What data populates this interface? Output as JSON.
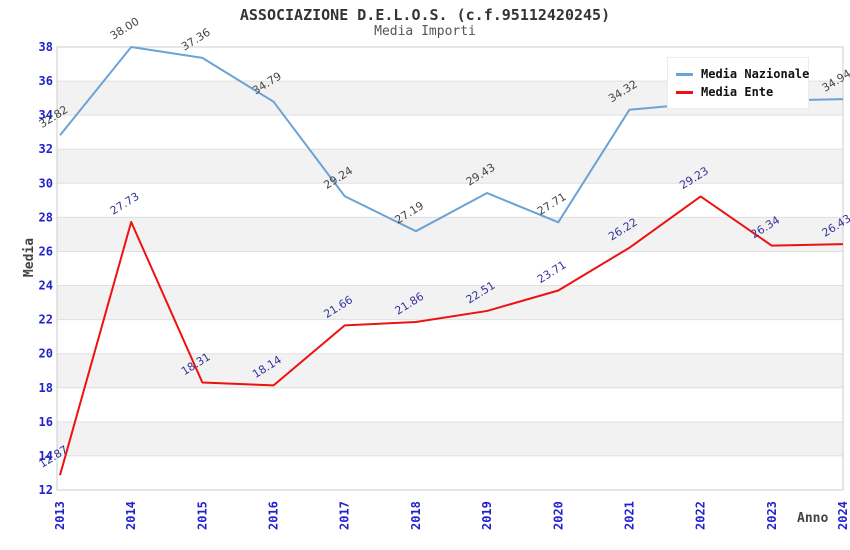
{
  "chart_data": {
    "type": "line",
    "title": "ASSOCIAZIONE D.E.L.O.S. (c.f.95112420245)",
    "subtitle": "Media Importi",
    "x": [
      2013,
      2014,
      2015,
      2016,
      2017,
      2018,
      2019,
      2020,
      2021,
      2022,
      2023,
      2024
    ],
    "xlabel": "Anno",
    "ylabel": "Media",
    "ylim": [
      12,
      38
    ],
    "ytick_step": 2,
    "grid": true,
    "background": "striped-bands",
    "legend_position": "top-right",
    "series": [
      {
        "name": "Media Nazionale",
        "color": "#6ba3d6",
        "label_color": "#444444",
        "values": [
          32.82,
          38.0,
          37.36,
          34.79,
          29.24,
          27.19,
          29.43,
          27.71,
          34.32,
          34.7,
          34.85,
          34.94
        ],
        "point_labels": [
          "32.82",
          "38.00",
          "37.36",
          "34.79",
          "29.24",
          "27.19",
          "29.43",
          "27.71",
          "34.32",
          "",
          "",
          "34.94"
        ]
      },
      {
        "name": "Media Ente",
        "color": "#ee1111",
        "label_color": "#333399",
        "values": [
          12.87,
          27.73,
          18.31,
          18.14,
          21.66,
          21.86,
          22.51,
          23.71,
          26.22,
          29.23,
          26.34,
          26.43
        ],
        "point_labels": [
          "12.87",
          "27.73",
          "18.31",
          "18.14",
          "21.66",
          "21.86",
          "22.51",
          "23.71",
          "26.22",
          "29.23",
          "26.34",
          "26.43"
        ]
      }
    ]
  },
  "theme": {
    "tick_label_color": "#2222cc",
    "grid_color": "#e0e0e0",
    "band_color": "#f2f2f2",
    "plot_border_color": "#cccccc",
    "title_color": "#333333",
    "subtitle_color": "#555555",
    "axis_title_color": "#444444"
  }
}
